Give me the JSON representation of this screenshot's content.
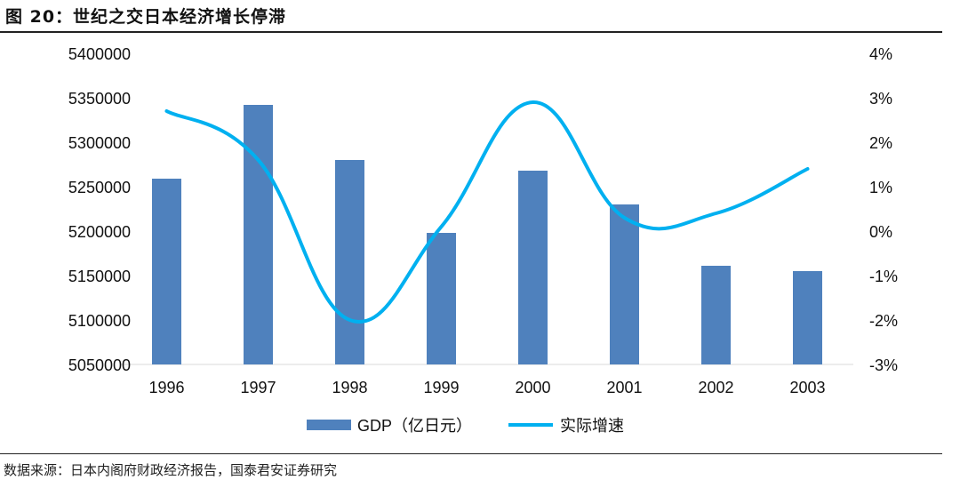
{
  "title": "图 20：世纪之交日本经济增长停滞",
  "source": "数据来源：日本内阁府财政经济报告，国泰君安证券研究",
  "chart_data": {
    "type": "bar+line",
    "categories": [
      "1996",
      "1997",
      "1998",
      "1999",
      "2000",
      "2001",
      "2002",
      "2003"
    ],
    "series": [
      {
        "name": "GDP（亿日元）",
        "type": "bar",
        "axis": "left",
        "color": "#4f81bd",
        "values": [
          5259000,
          5342000,
          5280000,
          5198000,
          5268000,
          5230000,
          5161000,
          5155000
        ]
      },
      {
        "name": "实际增速",
        "type": "line",
        "axis": "right",
        "unit": "%",
        "color": "#00b0f0",
        "values": [
          2.7,
          1.6,
          -2.0,
          0.1,
          2.9,
          0.3,
          0.4,
          1.4
        ]
      }
    ],
    "left_axis": {
      "min": 5050000,
      "max": 5400000,
      "step": 50000,
      "ticks": [
        "5050000",
        "5100000",
        "5150000",
        "5200000",
        "5250000",
        "5300000",
        "5350000",
        "5400000"
      ]
    },
    "right_axis": {
      "min": -3,
      "max": 4,
      "step": 1,
      "ticks": [
        "-3%",
        "-2%",
        "-1%",
        "0%",
        "1%",
        "2%",
        "3%",
        "4%"
      ]
    },
    "grid": false,
    "legend": "bottom"
  }
}
